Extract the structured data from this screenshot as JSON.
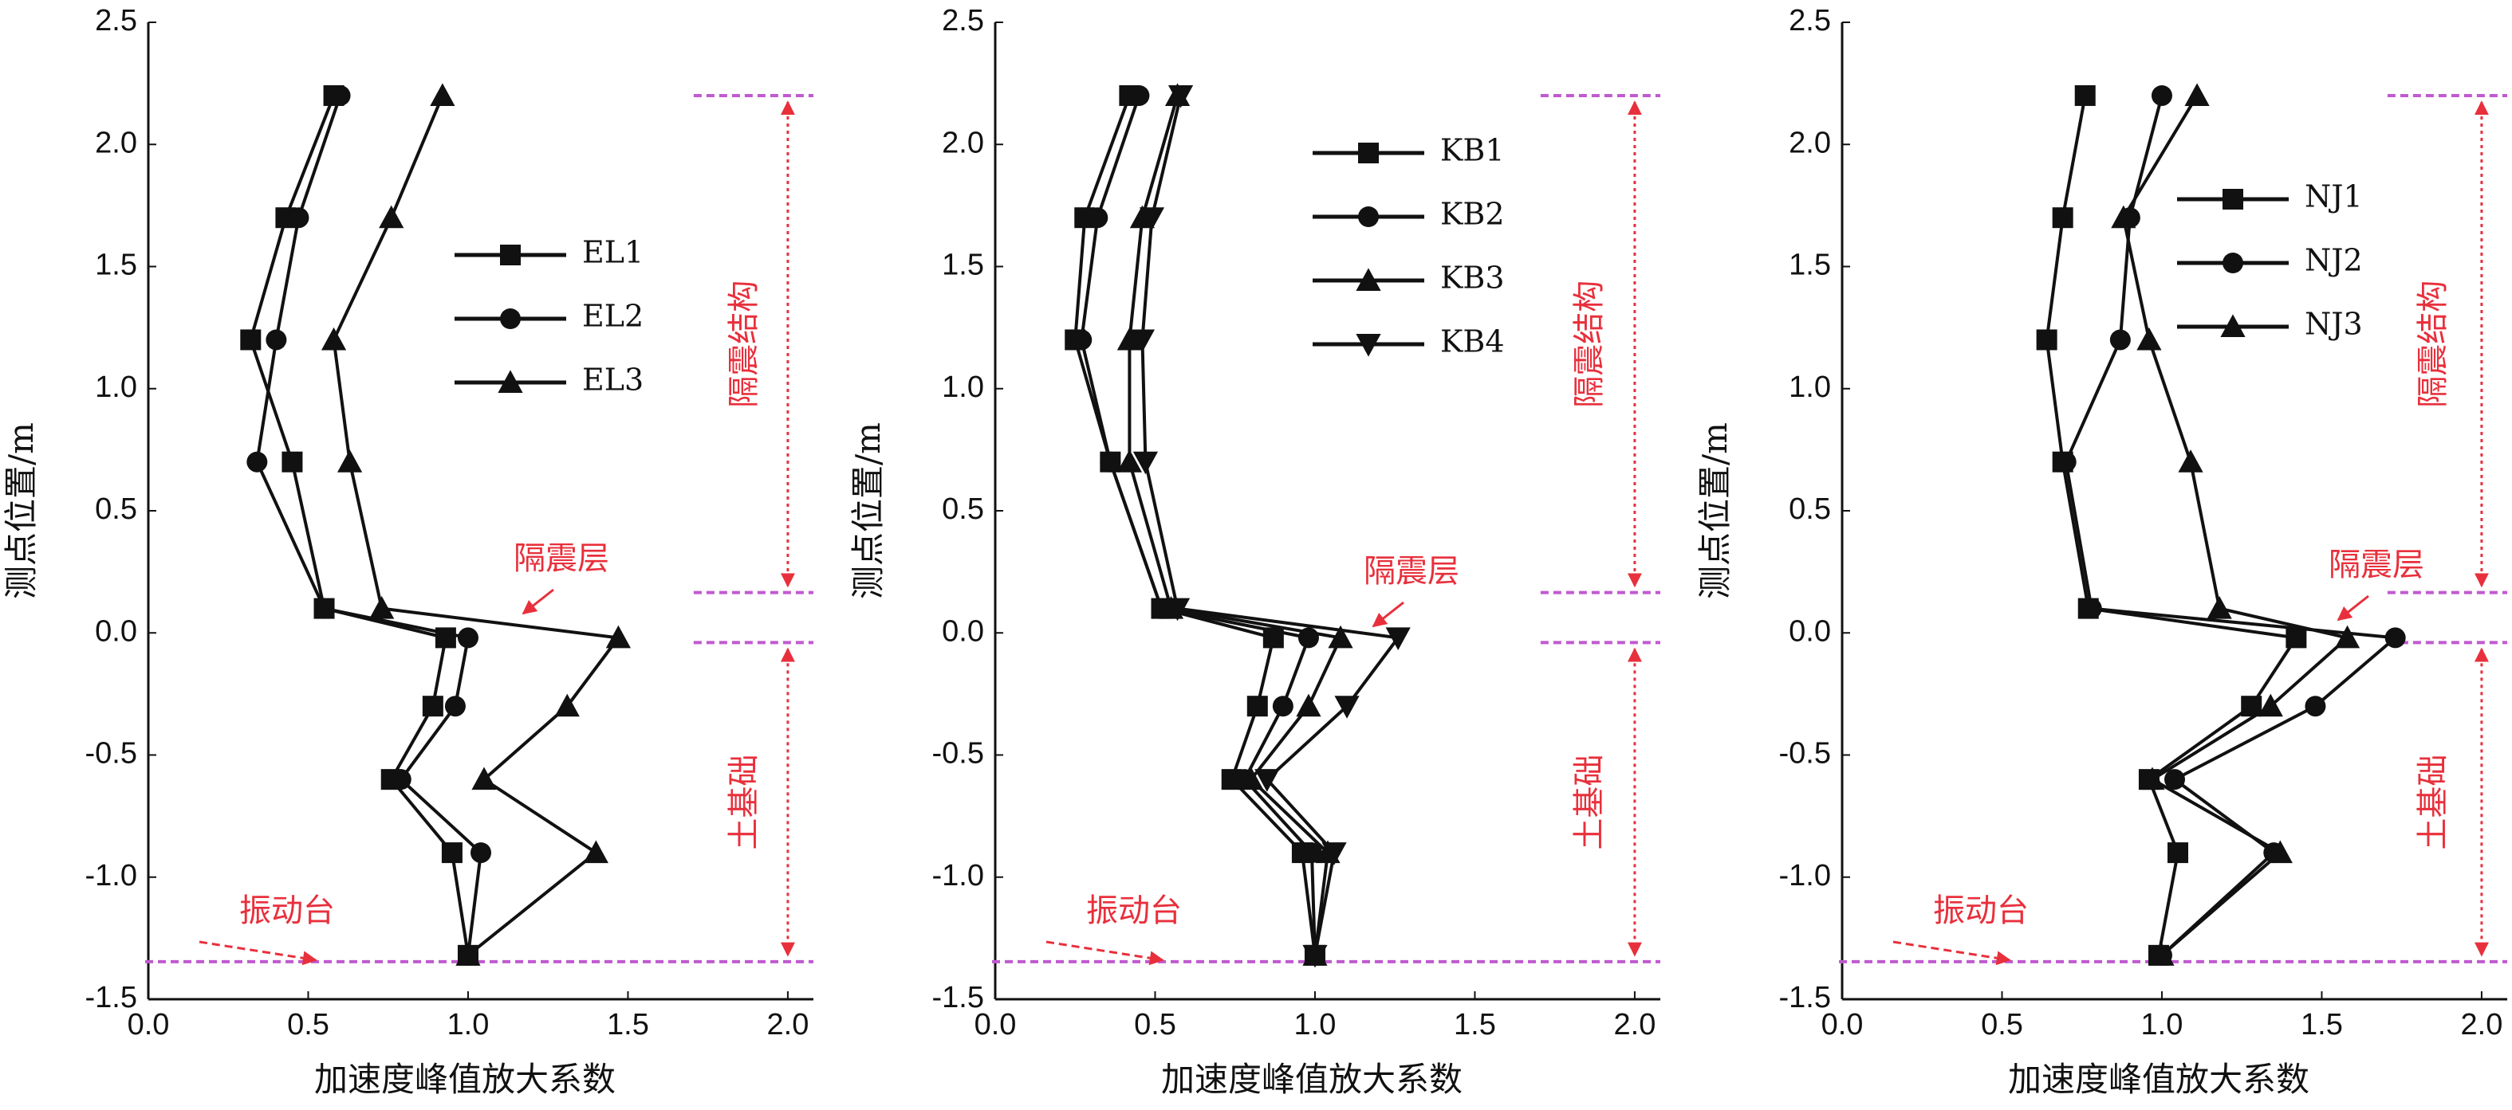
{
  "chart_data": [
    {
      "type": "line",
      "xlabel": "加速度峰值放大系数",
      "ylabel": "测点位置/m",
      "xlim": [
        0,
        2.08
      ],
      "ylim": [
        -1.5,
        2.5
      ],
      "xticks": [
        {
          "value": 0,
          "label": "0.0"
        },
        0.5,
        {
          "value": 1,
          "label": "1.0"
        },
        1.5,
        {
          "value": 2,
          "label": "2.0"
        }
      ],
      "yticks": [
        2.5,
        {
          "value": 2,
          "label": "2.0"
        },
        1.5,
        {
          "value": 1,
          "label": "1.0"
        },
        0.5,
        {
          "value": 0,
          "label": "0.0"
        },
        -0.5,
        {
          "value": -1,
          "label": "-1.0"
        },
        -1.5
      ],
      "y": [
        2.2,
        1.7,
        1.2,
        0.7,
        0.1,
        -0.02,
        -0.3,
        -0.6,
        -0.9,
        -1.32
      ],
      "series": [
        {
          "name": "EL1",
          "marker": "square",
          "color": "#111111",
          "x": [
            0.58,
            0.43,
            0.32,
            0.45,
            0.55,
            0.93,
            0.89,
            0.76,
            0.95,
            1.0
          ]
        },
        {
          "name": "EL2",
          "marker": "circle",
          "color": "#111111",
          "x": [
            0.6,
            0.47,
            0.4,
            0.34,
            0.55,
            1.0,
            0.96,
            0.79,
            1.04,
            1.0
          ]
        },
        {
          "name": "EL3",
          "marker": "triangle",
          "color": "#111111",
          "x": [
            0.92,
            0.76,
            0.58,
            0.63,
            0.73,
            1.47,
            1.31,
            1.05,
            1.4,
            1.0
          ]
        }
      ],
      "annotations": {
        "structure": "隔震结构",
        "foundation": "土基础",
        "layer": "隔震层",
        "table": "振动台"
      }
    },
    {
      "type": "line",
      "xlabel": "加速度峰值放大系数",
      "ylabel": "测点位置/m",
      "xlim": [
        0,
        2.08
      ],
      "ylim": [
        -1.5,
        2.5
      ],
      "xticks": [
        {
          "value": 0,
          "label": "0.0"
        },
        0.5,
        {
          "value": 1,
          "label": "1.0"
        },
        1.5,
        {
          "value": 2,
          "label": "2.0"
        }
      ],
      "yticks": [
        2.5,
        {
          "value": 2,
          "label": "2.0"
        },
        1.5,
        {
          "value": 1,
          "label": "1.0"
        },
        0.5,
        {
          "value": 0,
          "label": "0.0"
        },
        -0.5,
        {
          "value": -1,
          "label": "-1.0"
        },
        -1.5
      ],
      "y": [
        2.2,
        1.7,
        1.2,
        0.7,
        0.1,
        -0.02,
        -0.3,
        -0.6,
        -0.9,
        -1.32
      ],
      "series": [
        {
          "name": "KB1",
          "marker": "square",
          "color": "#111111",
          "x": [
            0.42,
            0.28,
            0.25,
            0.36,
            0.52,
            0.87,
            0.82,
            0.74,
            0.96,
            1.0
          ]
        },
        {
          "name": "KB2",
          "marker": "circle",
          "color": "#111111",
          "x": [
            0.45,
            0.32,
            0.27,
            0.36,
            0.52,
            0.98,
            0.9,
            0.78,
            0.99,
            1.0
          ]
        },
        {
          "name": "KB3",
          "marker": "triangle",
          "color": "#111111",
          "x": [
            0.57,
            0.46,
            0.42,
            0.42,
            0.55,
            1.08,
            0.98,
            0.8,
            1.04,
            1.0
          ]
        },
        {
          "name": "KB4",
          "marker": "triangle-down",
          "color": "#111111",
          "x": [
            0.58,
            0.49,
            0.46,
            0.47,
            0.57,
            1.26,
            1.1,
            0.85,
            1.06,
            1.0
          ]
        }
      ],
      "annotations": {
        "structure": "隔震结构",
        "foundation": "土基础",
        "layer": "隔震层",
        "table": "振动台"
      }
    },
    {
      "type": "line",
      "xlabel": "加速度峰值放大系数",
      "ylabel": "测点位置/m",
      "xlim": [
        0,
        2.08
      ],
      "ylim": [
        -1.5,
        2.5
      ],
      "xticks": [
        {
          "value": 0,
          "label": "0.0"
        },
        0.5,
        {
          "value": 1,
          "label": "1.0"
        },
        1.5,
        {
          "value": 2,
          "label": "2.0"
        }
      ],
      "yticks": [
        2.5,
        {
          "value": 2,
          "label": "2.0"
        },
        1.5,
        {
          "value": 1,
          "label": "1.0"
        },
        0.5,
        {
          "value": 0,
          "label": "0.0"
        },
        -0.5,
        {
          "value": -1,
          "label": "-1.0"
        },
        -1.5
      ],
      "y": [
        2.2,
        1.7,
        1.2,
        0.7,
        0.1,
        -0.02,
        -0.3,
        -0.6,
        -0.9,
        -1.32
      ],
      "series": [
        {
          "name": "NJ1",
          "marker": "square",
          "color": "#111111",
          "x": [
            0.76,
            0.69,
            0.64,
            0.69,
            0.77,
            1.42,
            1.28,
            0.96,
            1.05,
            0.99
          ]
        },
        {
          "name": "NJ2",
          "marker": "circle",
          "color": "#111111",
          "x": [
            1.0,
            0.9,
            0.87,
            0.7,
            0.78,
            1.73,
            1.48,
            1.04,
            1.35,
            1.0
          ]
        },
        {
          "name": "NJ3",
          "marker": "triangle",
          "color": "#111111",
          "x": [
            1.11,
            0.88,
            0.96,
            1.09,
            1.18,
            1.58,
            1.34,
            0.97,
            1.37,
            1.0
          ]
        }
      ],
      "annotations": {
        "structure": "隔震结构",
        "foundation": "土基础",
        "layer": "隔震层",
        "table": "振动台"
      }
    }
  ]
}
